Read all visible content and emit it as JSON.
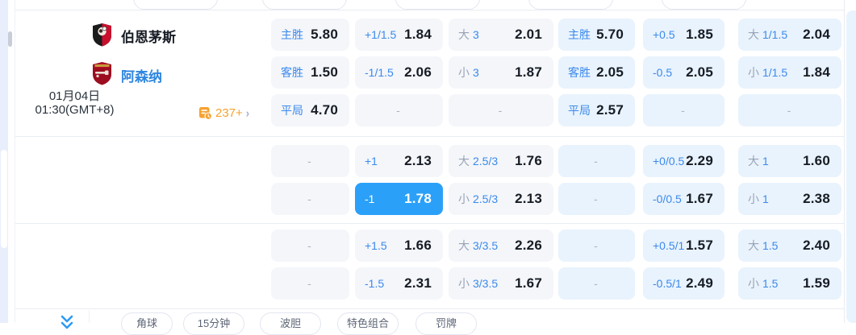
{
  "teams": {
    "home": {
      "name": "伯恩茅斯"
    },
    "away": {
      "name": "阿森纳"
    }
  },
  "datetime": {
    "line1": "01月04日",
    "line2": "01:30(GMT+8)"
  },
  "more_markets": {
    "count": "237+",
    "chevron": "›"
  },
  "odds_grid": {
    "sections": [
      {
        "rows": [
          [
            {
              "t": "lv",
              "label": "主胜",
              "value": "5.80"
            },
            {
              "t": "lv",
              "label": "+1/1.5",
              "value": "1.84"
            },
            {
              "t": "ou",
              "prefix": "大",
              "num": "3",
              "value": "2.01"
            },
            {
              "t": "lv",
              "label": "主胜",
              "value": "5.70"
            },
            {
              "t": "lv",
              "label": "+0.5",
              "value": "1.85"
            },
            {
              "t": "ou",
              "prefix": "大",
              "num": "1/1.5",
              "value": "2.04"
            }
          ],
          [
            {
              "t": "lv",
              "label": "客胜",
              "value": "1.50"
            },
            {
              "t": "lv",
              "label": "-1/1.5",
              "value": "2.06"
            },
            {
              "t": "ou",
              "prefix": "小",
              "num": "3",
              "value": "1.87"
            },
            {
              "t": "lv",
              "label": "客胜",
              "value": "2.05"
            },
            {
              "t": "lv",
              "label": "-0.5",
              "value": "2.05"
            },
            {
              "t": "ou",
              "prefix": "小",
              "num": "1/1.5",
              "value": "1.84"
            }
          ],
          [
            {
              "t": "lv",
              "label": "平局",
              "value": "4.70"
            },
            {
              "t": "dash"
            },
            {
              "t": "dash"
            },
            {
              "t": "lv",
              "label": "平局",
              "value": "2.57"
            },
            {
              "t": "dash"
            },
            {
              "t": "dash"
            }
          ]
        ]
      },
      {
        "rows": [
          [
            {
              "t": "dash"
            },
            {
              "t": "lv",
              "label": "+1",
              "value": "2.13"
            },
            {
              "t": "ou",
              "prefix": "大",
              "num": "2.5/3",
              "value": "1.76"
            },
            {
              "t": "dash"
            },
            {
              "t": "lv",
              "label": "+0/0.5",
              "value": "2.29"
            },
            {
              "t": "ou",
              "prefix": "大",
              "num": "1",
              "value": "1.60"
            }
          ],
          [
            {
              "t": "dash"
            },
            {
              "t": "hl",
              "label": "-1",
              "value": "1.78"
            },
            {
              "t": "ou",
              "prefix": "小",
              "num": "2.5/3",
              "value": "2.13"
            },
            {
              "t": "dash"
            },
            {
              "t": "lv",
              "label": "-0/0.5",
              "value": "1.67"
            },
            {
              "t": "ou",
              "prefix": "小",
              "num": "1",
              "value": "2.38"
            }
          ]
        ]
      },
      {
        "rows": [
          [
            {
              "t": "dash"
            },
            {
              "t": "lv",
              "label": "+1.5",
              "value": "1.66"
            },
            {
              "t": "ou",
              "prefix": "大",
              "num": "3/3.5",
              "value": "2.26"
            },
            {
              "t": "dash"
            },
            {
              "t": "lv",
              "label": "+0.5/1",
              "value": "1.57"
            },
            {
              "t": "ou",
              "prefix": "大",
              "num": "1.5",
              "value": "2.40"
            }
          ],
          [
            {
              "t": "dash"
            },
            {
              "t": "lv",
              "label": "-1.5",
              "value": "2.31"
            },
            {
              "t": "ou",
              "prefix": "小",
              "num": "3/3.5",
              "value": "1.67"
            },
            {
              "t": "dash"
            },
            {
              "t": "lv",
              "label": "-0.5/1",
              "value": "2.49"
            },
            {
              "t": "ou",
              "prefix": "小",
              "num": "1.5",
              "value": "1.59"
            }
          ]
        ]
      }
    ],
    "dash_char": "-"
  },
  "footer_tabs": [
    "角球",
    "15分钟",
    "波胆",
    "特色组合",
    "罚牌"
  ],
  "colors": {
    "label_blue": "#3b89ec",
    "label_gray": "#98a3b5",
    "value_dark": "#171c24",
    "cell_plain": "#f4f6fa",
    "cell_blue": "#e9f3fd",
    "highlight_blue": "#2ba0f8",
    "dash_gray": "#a9b3c6",
    "orange": "#f7a12f",
    "team_blue": "#2e86e0",
    "border": "#e9ecf2",
    "pill_border": "#e2e6f0",
    "pill_text": "#5c6575",
    "track_blue": "#e8eefb"
  }
}
